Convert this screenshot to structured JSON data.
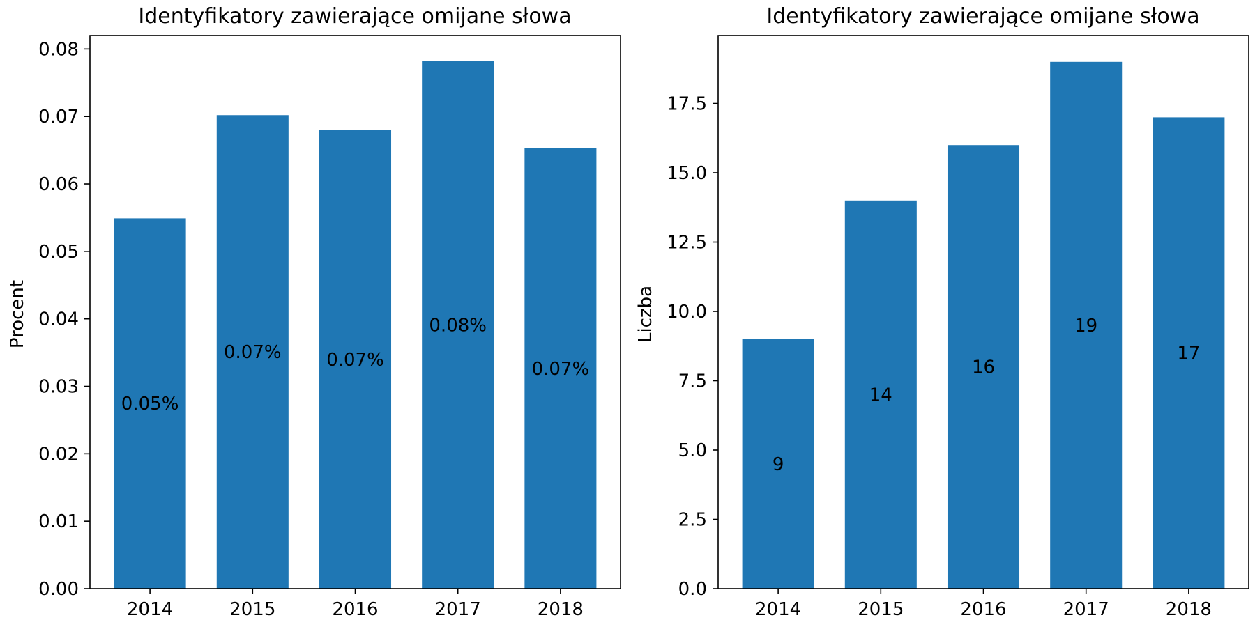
{
  "chart_data": [
    {
      "type": "bar",
      "title": "Identyfikatory zawierające omijane słowa",
      "xlabel": "",
      "ylabel": "Procent",
      "categories": [
        "2014",
        "2015",
        "2016",
        "2017",
        "2018"
      ],
      "values": [
        0.0549,
        0.0702,
        0.068,
        0.0782,
        0.0653
      ],
      "bar_labels": [
        "0.05%",
        "0.07%",
        "0.07%",
        "0.08%",
        "0.07%"
      ],
      "ylim": [
        0,
        0.082
      ],
      "yticks": [
        0,
        0.01,
        0.02,
        0.03,
        0.04,
        0.05,
        0.06,
        0.07,
        0.08
      ],
      "ytick_labels": [
        "0.00",
        "0.01",
        "0.02",
        "0.03",
        "0.04",
        "0.05",
        "0.06",
        "0.07",
        "0.08"
      ],
      "bar_color": "#1f77b4",
      "grid": false,
      "legend": false
    },
    {
      "type": "bar",
      "title": "Identyfikatory zawierające omijane słowa",
      "xlabel": "",
      "ylabel": "Liczba",
      "categories": [
        "2014",
        "2015",
        "2016",
        "2017",
        "2018"
      ],
      "values": [
        9,
        14,
        16,
        19,
        17
      ],
      "bar_labels": [
        "9",
        "14",
        "16",
        "19",
        "17"
      ],
      "ylim": [
        0,
        19.95
      ],
      "yticks": [
        0,
        2.5,
        5,
        7.5,
        10,
        12.5,
        15,
        17.5
      ],
      "ytick_labels": [
        "0.0",
        "2.5",
        "5.0",
        "7.5",
        "10.0",
        "12.5",
        "15.0",
        "17.5"
      ],
      "bar_color": "#1f77b4",
      "grid": false,
      "legend": false
    }
  ]
}
